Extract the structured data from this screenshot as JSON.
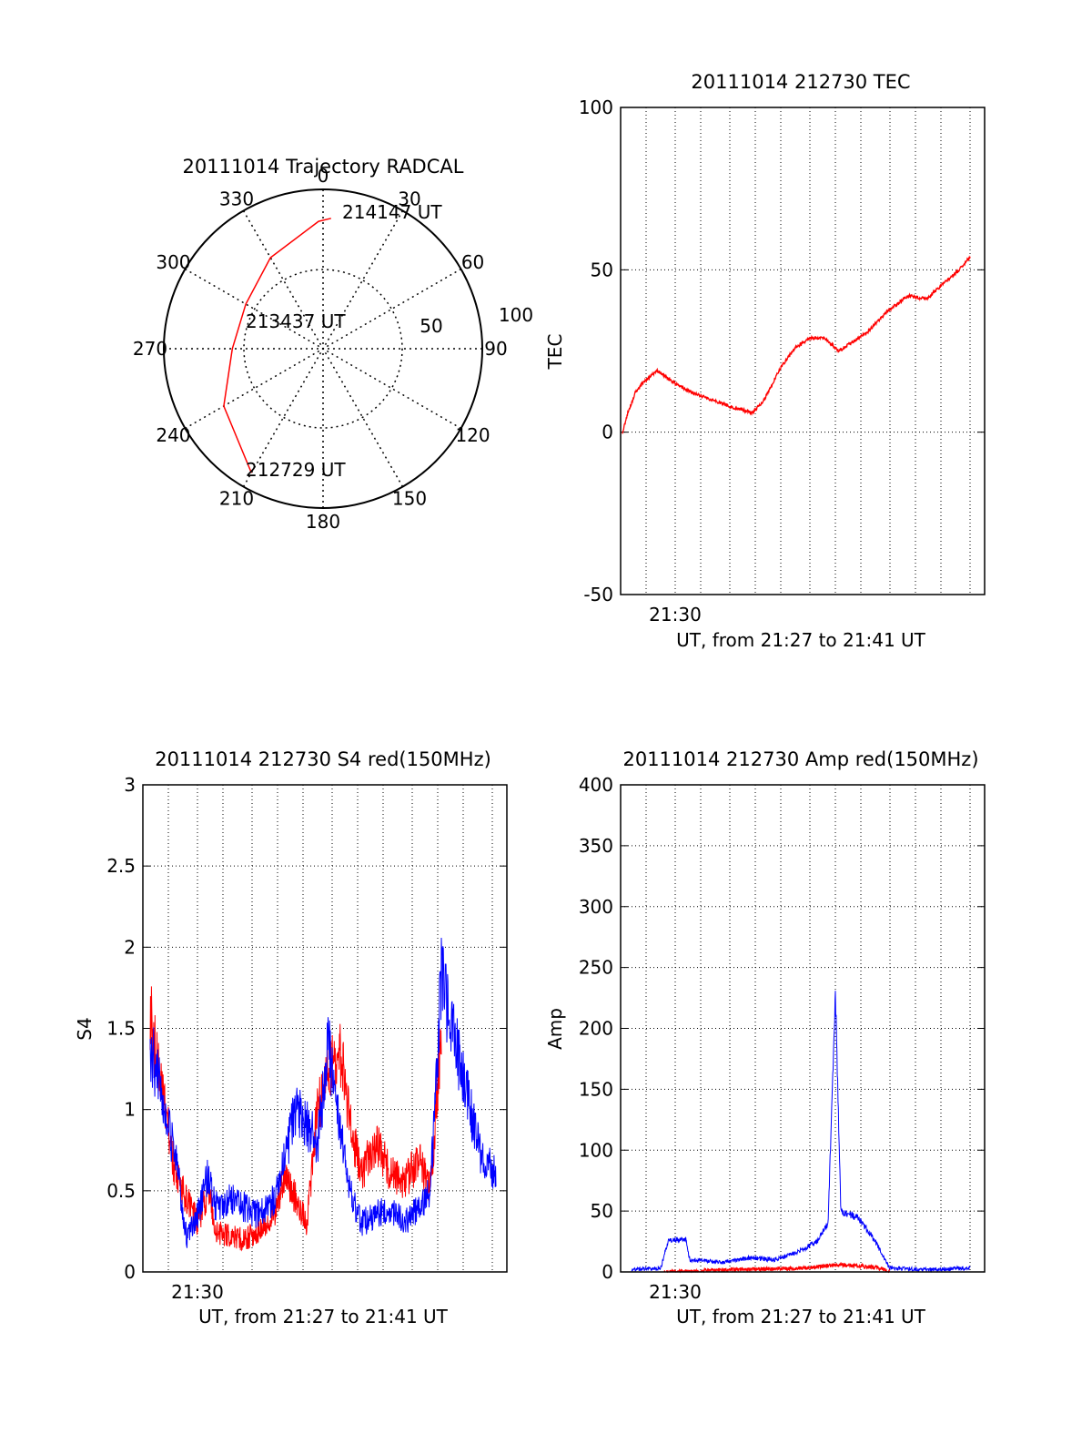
{
  "chart_data": [
    {
      "type": "polar",
      "title": "20111014 Trajectory RADCAL",
      "angle_labels": [
        "0",
        "30",
        "60",
        "90",
        "120",
        "150",
        "180",
        "210",
        "240",
        "270",
        "300",
        "330"
      ],
      "radius_labels": [
        "50",
        "100"
      ],
      "point_labels": [
        "214147 UT",
        "213437 UT",
        "212729 UT"
      ],
      "series": [
        {
          "color": "#ff0000",
          "points": [
            [
              210,
              90
            ],
            [
              240,
              72
            ],
            [
              270,
              57
            ],
            [
              300,
              56
            ],
            [
              330,
              66
            ],
            [
              358,
              80
            ],
            [
              3.5,
              82
            ]
          ]
        }
      ]
    },
    {
      "type": "line",
      "title": "20111014 212730 TEC",
      "ylabel": "TEC",
      "xlabel": "UT, from 21:27 to 21:41 UT",
      "ylim": [
        -50,
        100
      ],
      "yticks": [
        "100",
        "50",
        "0",
        "-50"
      ],
      "xticks": [
        "21:30"
      ],
      "grid": true,
      "series": [
        {
          "color": "#ff0000",
          "points": [
            [
              0.05,
              0
            ],
            [
              0.2,
              6
            ],
            [
              0.4,
              12
            ],
            [
              0.6,
              15
            ],
            [
              0.8,
              17
            ],
            [
              1.0,
              19
            ],
            [
              1.5,
              15
            ],
            [
              2.0,
              12
            ],
            [
              2.5,
              10
            ],
            [
              3.0,
              8
            ],
            [
              3.6,
              6
            ],
            [
              3.9,
              9
            ],
            [
              4.4,
              20
            ],
            [
              4.8,
              26
            ],
            [
              5.2,
              29
            ],
            [
              5.6,
              29
            ],
            [
              6.0,
              25
            ],
            [
              6.4,
              28
            ],
            [
              6.8,
              31
            ],
            [
              7.3,
              37
            ],
            [
              7.9,
              42
            ],
            [
              8.4,
              41
            ],
            [
              8.8,
              45
            ],
            [
              9.3,
              50
            ],
            [
              9.6,
              54
            ]
          ]
        }
      ]
    },
    {
      "type": "line",
      "title": "20111014 212730 S4 red(150MHz)",
      "ylabel": "S4",
      "xlabel": "UT, from 21:27 to 21:41 UT",
      "ylim": [
        0,
        3
      ],
      "yticks": [
        "3",
        "2.5",
        "2",
        "1.5",
        "1",
        "0.5",
        "0"
      ],
      "xticks": [
        "21:30"
      ],
      "grid": true,
      "series": [
        {
          "color": "#ff0000",
          "points": [
            [
              0.2,
              1.6
            ],
            [
              0.4,
              1.3
            ],
            [
              0.6,
              1.0
            ],
            [
              0.9,
              0.6
            ],
            [
              1.2,
              0.45
            ],
            [
              1.5,
              0.3
            ],
            [
              1.8,
              0.5
            ],
            [
              2.0,
              0.25
            ],
            [
              2.4,
              0.22
            ],
            [
              2.8,
              0.2
            ],
            [
              3.2,
              0.25
            ],
            [
              3.6,
              0.35
            ],
            [
              3.9,
              0.6
            ],
            [
              4.2,
              0.45
            ],
            [
              4.5,
              0.3
            ],
            [
              4.8,
              1.0
            ],
            [
              5.1,
              1.2
            ],
            [
              5.4,
              1.4
            ],
            [
              5.7,
              0.9
            ],
            [
              6.0,
              0.6
            ],
            [
              6.4,
              0.8
            ],
            [
              6.8,
              0.6
            ],
            [
              7.2,
              0.55
            ],
            [
              7.6,
              0.7
            ],
            [
              7.9,
              0.5
            ],
            [
              8.2,
              1.5
            ]
          ]
        },
        {
          "color": "#0000ff",
          "points": [
            [
              0.2,
              1.4
            ],
            [
              0.4,
              1.2
            ],
            [
              0.6,
              1.0
            ],
            [
              0.9,
              0.7
            ],
            [
              1.2,
              0.2
            ],
            [
              1.5,
              0.35
            ],
            [
              1.8,
              0.6
            ],
            [
              2.0,
              0.4
            ],
            [
              2.4,
              0.45
            ],
            [
              2.8,
              0.4
            ],
            [
              3.2,
              0.35
            ],
            [
              3.6,
              0.45
            ],
            [
              3.9,
              0.7
            ],
            [
              4.2,
              1.0
            ],
            [
              4.5,
              0.9
            ],
            [
              4.8,
              0.8
            ],
            [
              5.1,
              1.4
            ],
            [
              5.4,
              0.9
            ],
            [
              5.7,
              0.5
            ],
            [
              6.0,
              0.3
            ],
            [
              6.4,
              0.35
            ],
            [
              6.8,
              0.4
            ],
            [
              7.2,
              0.3
            ],
            [
              7.6,
              0.4
            ],
            [
              7.9,
              0.5
            ],
            [
              8.2,
              1.8
            ],
            [
              9.3,
              0.7
            ],
            [
              9.7,
              0.6
            ]
          ]
        }
      ]
    },
    {
      "type": "line",
      "title": "20111014 212730 Amp red(150MHz)",
      "ylabel": "Amp",
      "xlabel": "UT, from 21:27 to 21:41 UT",
      "ylim": [
        0,
        400
      ],
      "yticks": [
        "400",
        "350",
        "300",
        "250",
        "200",
        "150",
        "100",
        "50",
        "0"
      ],
      "xticks": [
        "21:30"
      ],
      "grid": true,
      "series": [
        {
          "color": "#0000ff",
          "points": [
            [
              0.3,
              2
            ],
            [
              1.1,
              3
            ],
            [
              1.3,
              25
            ],
            [
              1.8,
              27
            ],
            [
              1.9,
              10
            ],
            [
              2.8,
              8
            ],
            [
              3.6,
              12
            ],
            [
              4.2,
              10
            ],
            [
              4.8,
              15
            ],
            [
              5.4,
              25
            ],
            [
              5.7,
              40
            ],
            [
              5.9,
              230
            ],
            [
              6.05,
              50
            ],
            [
              6.5,
              45
            ],
            [
              7.0,
              25
            ],
            [
              7.4,
              3
            ],
            [
              8.5,
              2
            ],
            [
              9.6,
              3
            ]
          ]
        },
        {
          "color": "#ff0000",
          "points": [
            [
              1.2,
              0
            ],
            [
              3.0,
              2
            ],
            [
              5.0,
              3
            ],
            [
              6.0,
              6
            ],
            [
              7.0,
              4
            ],
            [
              7.4,
              0
            ]
          ]
        }
      ]
    }
  ]
}
